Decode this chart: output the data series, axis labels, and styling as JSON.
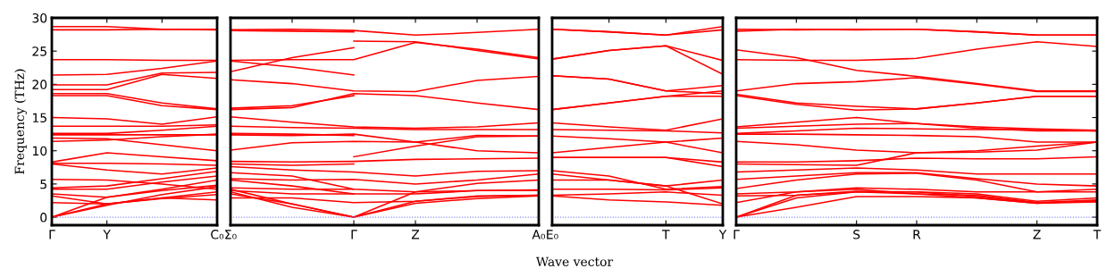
{
  "chart_data": [
    {
      "type": "line",
      "ylabel": "Frequency (THz)",
      "categories": [
        "Γ",
        "Y",
        null,
        "C₀"
      ],
      "ylim": [
        -1.2,
        30
      ],
      "yticks": [
        0,
        5,
        10,
        15,
        20,
        25,
        30
      ],
      "line_style": "solid",
      "marker": "none",
      "ref_lines": [
        {
          "axis": "y",
          "value": 0,
          "color": "#8080ff",
          "line_style": "dotted"
        }
      ],
      "series": [
        {
          "color": "#ff0000",
          "values": [
            28.7,
            28.7,
            28.3,
            28.3
          ]
        },
        {
          "color": "#ff0000",
          "values": [
            28.2,
            28.2,
            28.3,
            28.2
          ]
        },
        {
          "color": "#ff0000",
          "values": [
            23.7,
            23.7,
            23.6,
            23.6
          ]
        },
        {
          "color": "#ff0000",
          "values": [
            21.4,
            21.5,
            22.4,
            23.5
          ]
        },
        {
          "color": "#ff0000",
          "values": [
            19.9,
            19.9,
            21.7,
            21.8
          ]
        },
        {
          "color": "#ff0000",
          "values": [
            19.2,
            19.2,
            21.5,
            20.9
          ]
        },
        {
          "color": "#ff0000",
          "values": [
            18.6,
            18.6,
            17.2,
            16.3
          ]
        },
        {
          "color": "#ff0000",
          "values": [
            18.3,
            18.3,
            16.8,
            16.2
          ]
        },
        {
          "color": "#ff0000",
          "values": [
            15.0,
            14.8,
            14.0,
            15.1
          ]
        },
        {
          "color": "#ff0000",
          "values": [
            13.7,
            13.7,
            13.7,
            13.9
          ]
        },
        {
          "color": "#ff0000",
          "values": [
            12.6,
            12.6,
            13.1,
            13.7
          ]
        },
        {
          "color": "#ff0000",
          "values": [
            12.4,
            12.4,
            12.4,
            12.4
          ]
        },
        {
          "color": "#ff0000",
          "values": [
            11.9,
            11.8,
            10.9,
            10.0
          ]
        },
        {
          "color": "#ff0000",
          "values": [
            11.4,
            11.6,
            12.1,
            12.5
          ]
        },
        {
          "color": "#ff0000",
          "values": [
            8.3,
            9.7,
            9.1,
            8.5
          ]
        },
        {
          "color": "#ff0000",
          "values": [
            8.1,
            8.1,
            8.0,
            7.8
          ]
        },
        {
          "color": "#ff0000",
          "values": [
            8.0,
            7.1,
            6.5,
            7.4
          ]
        },
        {
          "color": "#ff0000",
          "values": [
            5.7,
            5.6,
            5.0,
            4.2
          ]
        },
        {
          "color": "#ff0000",
          "values": [
            4.4,
            4.7,
            5.8,
            6.9
          ]
        },
        {
          "color": "#ff0000",
          "values": [
            4.2,
            4.2,
            5.3,
            6.2
          ]
        },
        {
          "color": "#ff0000",
          "values": [
            3.5,
            3.0,
            4.2,
            5.6
          ]
        },
        {
          "color": "#ff0000",
          "values": [
            3.2,
            2.0,
            2.8,
            3.4
          ]
        },
        {
          "color": "#ff0000",
          "values": [
            2.2,
            2.0,
            2.9,
            2.6
          ]
        },
        {
          "color": "#ff0000",
          "values": [
            0,
            2.0,
            2.9,
            3.8
          ]
        },
        {
          "color": "#ff0000",
          "values": [
            0,
            3.0,
            4.0,
            4.8
          ]
        },
        {
          "color": "#ff0000",
          "values": [
            0,
            1.8,
            3.4,
            4.6
          ]
        }
      ]
    },
    {
      "type": "line",
      "xlabel": "Wave vector",
      "categories": [
        "Σ₀",
        null,
        "Γ",
        "Z",
        null,
        "A₀"
      ],
      "ylim": [
        -1.2,
        30
      ],
      "tick_labels": "x",
      "line_style": "solid",
      "marker": "none",
      "ref_lines": [
        {
          "axis": "y",
          "value": 0,
          "color": "#8080ff",
          "line_style": "dotted"
        }
      ],
      "series": [
        {
          "color": "#ff0000",
          "values": [
            28.2,
            28.3,
            28.1,
            27.4,
            27.8,
            28.3
          ]
        },
        {
          "color": "#ff0000",
          "values": [
            28.1,
            28.0,
            27.9,
            null,
            null,
            null
          ]
        },
        {
          "color": "#ff0000",
          "values": [
            23.6,
            23.7,
            23.7,
            26.3,
            25.3,
            24.0
          ]
        },
        {
          "color": "#ff0000",
          "values": [
            23.5,
            22.6,
            21.4,
            null,
            null,
            null
          ]
        },
        {
          "color": "#ff0000",
          "values": [
            21.9,
            24.0,
            25.5,
            null,
            null,
            null
          ]
        },
        {
          "color": "#ff0000",
          "values": [
            null,
            null,
            26.5,
            26.4,
            25.1,
            23.8
          ]
        },
        {
          "color": "#ff0000",
          "values": [
            20.7,
            20.1,
            19.0,
            18.9,
            20.6,
            21.2
          ]
        },
        {
          "color": "#ff0000",
          "values": [
            16.2,
            16.5,
            18.6,
            18.3,
            17.2,
            16.2
          ]
        },
        {
          "color": "#ff0000",
          "values": [
            16.4,
            16.8,
            18.3,
            null,
            null,
            null
          ]
        },
        {
          "color": "#ff0000",
          "values": [
            15.1,
            14.3,
            13.6,
            13.4,
            13.6,
            14.2
          ]
        },
        {
          "color": "#ff0000",
          "values": [
            13.7,
            13.5,
            13.4,
            13.2,
            13.2,
            13.2
          ]
        },
        {
          "color": "#ff0000",
          "values": [
            12.4,
            12.3,
            12.5,
            11.3,
            12.3,
            12.2
          ]
        },
        {
          "color": "#ff0000",
          "values": [
            12.6,
            12.5,
            12.3,
            null,
            null,
            null
          ]
        },
        {
          "color": "#ff0000",
          "values": [
            10.1,
            11.2,
            11.4,
            11.3,
            10.0,
            9.7
          ]
        },
        {
          "color": "#ff0000",
          "values": [
            null,
            null,
            9.1,
            10.7,
            12.1,
            12.2
          ]
        },
        {
          "color": "#ff0000",
          "values": [
            8.4,
            8.3,
            8.4,
            8.7,
            8.8,
            8.9
          ]
        },
        {
          "color": "#ff0000",
          "values": [
            8.0,
            7.8,
            8.0,
            null,
            null,
            null
          ]
        },
        {
          "color": "#ff0000",
          "values": [
            7.6,
            7.1,
            6.8,
            6.2,
            6.9,
            7.0
          ]
        },
        {
          "color": "#ff0000",
          "values": [
            5.8,
            5.6,
            5.7,
            5.0,
            5.6,
            6.5
          ]
        },
        {
          "color": "#ff0000",
          "values": [
            6.7,
            6.2,
            4.2,
            3.8,
            5.1,
            5.6
          ]
        },
        {
          "color": "#ff0000",
          "values": [
            4.4,
            4.2,
            4.2,
            null,
            null,
            null
          ]
        },
        {
          "color": "#ff0000",
          "values": [
            5.6,
            4.7,
            3.5,
            3.5,
            4.0,
            4.1
          ]
        },
        {
          "color": "#ff0000",
          "values": [
            4.0,
            3.5,
            3.5,
            null,
            null,
            null
          ]
        },
        {
          "color": "#ff0000",
          "values": [
            2.9,
            2.9,
            2.2,
            2.4,
            3.2,
            3.3
          ]
        },
        {
          "color": "#ff0000",
          "values": [
            3.5,
            2.0,
            0,
            2.4,
            3.1,
            3.3
          ]
        },
        {
          "color": "#ff0000",
          "values": [
            4.2,
            2.0,
            0,
            2.1,
            2.8,
            3.2
          ]
        },
        {
          "color": "#ff0000",
          "values": [
            3.8,
            1.5,
            0,
            3.8,
            4.0,
            4.0
          ]
        }
      ]
    },
    {
      "type": "line",
      "categories": [
        "E₀",
        null,
        "T",
        "Y"
      ],
      "ylim": [
        -1.2,
        30
      ],
      "tick_labels": "x",
      "line_style": "solid",
      "marker": "none",
      "ref_lines": [
        {
          "axis": "y",
          "value": 0,
          "color": "#8080ff",
          "line_style": "dotted"
        }
      ],
      "series": [
        {
          "color": "#ff0000",
          "values": [
            28.3,
            27.9,
            27.4,
            28.7
          ]
        },
        {
          "color": "#ff0000",
          "values": [
            28.3,
            27.9,
            27.4,
            28.2
          ]
        },
        {
          "color": "#ff0000",
          "values": [
            23.8,
            25.1,
            25.8,
            23.6
          ]
        },
        {
          "color": "#ff0000",
          "values": [
            23.8,
            25.1,
            25.8,
            21.5
          ]
        },
        {
          "color": "#ff0000",
          "values": [
            21.3,
            20.8,
            19.0,
            19.8
          ]
        },
        {
          "color": "#ff0000",
          "values": [
            21.3,
            20.8,
            19.0,
            18.6
          ]
        },
        {
          "color": "#ff0000",
          "values": [
            16.2,
            17.2,
            18.2,
            19.0
          ]
        },
        {
          "color": "#ff0000",
          "values": [
            16.2,
            17.2,
            18.2,
            18.2
          ]
        },
        {
          "color": "#ff0000",
          "values": [
            14.2,
            13.6,
            13.1,
            14.8
          ]
        },
        {
          "color": "#ff0000",
          "values": [
            13.2,
            13.1,
            13.0,
            12.7
          ]
        },
        {
          "color": "#ff0000",
          "values": [
            12.2,
            11.8,
            11.3,
            9.7
          ]
        },
        {
          "color": "#ff0000",
          "values": [
            9.7,
            10.5,
            11.3,
            11.9
          ]
        },
        {
          "color": "#ff0000",
          "values": [
            9.0,
            9.0,
            9.0,
            7.6
          ]
        },
        {
          "color": "#ff0000",
          "values": [
            9.0,
            9.0,
            9.0,
            8.3
          ]
        },
        {
          "color": "#ff0000",
          "values": [
            7.0,
            6.2,
            4.2,
            4.6
          ]
        },
        {
          "color": "#ff0000",
          "values": [
            6.5,
            5.6,
            4.7,
            2.0
          ]
        },
        {
          "color": "#ff0000",
          "values": [
            5.6,
            5.6,
            4.7,
            5.6
          ]
        },
        {
          "color": "#ff0000",
          "values": [
            4.2,
            4.2,
            4.1,
            4.4
          ]
        },
        {
          "color": "#ff0000",
          "values": [
            3.3,
            3.5,
            3.8,
            3.3
          ]
        },
        {
          "color": "#ff0000",
          "values": [
            3.2,
            2.6,
            2.3,
            1.8
          ]
        }
      ]
    },
    {
      "type": "line",
      "categories": [
        "Γ",
        null,
        "S",
        "R",
        null,
        "Z",
        "T"
      ],
      "ylim": [
        -1.2,
        30
      ],
      "tick_labels": "x",
      "line_style": "solid",
      "marker": "none",
      "ref_lines": [
        {
          "axis": "y",
          "value": 0,
          "color": "#8080ff",
          "line_style": "dotted"
        }
      ],
      "series": [
        {
          "color": "#ff0000",
          "values": [
            28.3,
            28.2,
            28.3,
            28.3,
            27.9,
            27.4,
            27.4
          ]
        },
        {
          "color": "#ff0000",
          "values": [
            28.0,
            28.3,
            28.2,
            28.3,
            27.9,
            27.4,
            27.4
          ]
        },
        {
          "color": "#ff0000",
          "values": [
            25.2,
            24.0,
            22.1,
            21.2,
            20.1,
            19.0,
            19.0
          ]
        },
        {
          "color": "#ff0000",
          "values": [
            23.7,
            23.6,
            23.6,
            23.9,
            25.3,
            26.4,
            25.7
          ]
        },
        {
          "color": "#ff0000",
          "values": [
            19.0,
            20.1,
            20.4,
            21.0,
            20.0,
            18.9,
            18.9
          ]
        },
        {
          "color": "#ff0000",
          "values": [
            18.5,
            17.2,
            16.7,
            16.3,
            17.2,
            18.2,
            18.2
          ]
        },
        {
          "color": "#ff0000",
          "values": [
            18.3,
            17.0,
            16.1,
            16.3,
            17.2,
            18.2,
            18.2
          ]
        },
        {
          "color": "#ff0000",
          "values": [
            13.6,
            14.3,
            15.0,
            14.1,
            13.4,
            13.0,
            13.0
          ]
        },
        {
          "color": "#ff0000",
          "values": [
            13.4,
            13.7,
            14.0,
            14.1,
            13.6,
            13.3,
            13.1
          ]
        },
        {
          "color": "#ff0000",
          "values": [
            12.6,
            13.0,
            13.4,
            13.3,
            13.2,
            13.2,
            13.0
          ]
        },
        {
          "color": "#ff0000",
          "values": [
            12.5,
            12.5,
            12.4,
            12.3,
            12.1,
            11.3,
            11.3
          ]
        },
        {
          "color": "#ff0000",
          "values": [
            11.4,
            10.9,
            10.1,
            9.7,
            10.0,
            10.7,
            11.3
          ]
        },
        {
          "color": "#ff0000",
          "values": [
            8.3,
            8.3,
            8.5,
            8.9,
            8.8,
            8.8,
            9.1
          ]
        },
        {
          "color": "#ff0000",
          "values": [
            8.0,
            7.9,
            7.8,
            9.7,
            9.8,
            10.1,
            11.3
          ]
        },
        {
          "color": "#ff0000",
          "values": [
            6.8,
            7.1,
            7.4,
            7.1,
            6.5,
            6.5,
            6.5
          ]
        },
        {
          "color": "#ff0000",
          "values": [
            5.7,
            6.2,
            6.7,
            6.7,
            5.8,
            5.0,
            4.7
          ]
        },
        {
          "color": "#ff0000",
          "values": [
            4.3,
            5.6,
            6.5,
            6.6,
            5.6,
            3.8,
            4.2
          ]
        },
        {
          "color": "#ff0000",
          "values": [
            3.5,
            3.8,
            4.4,
            4.2,
            3.8,
            3.8,
            3.8
          ]
        },
        {
          "color": "#ff0000",
          "values": [
            3.2,
            3.3,
            3.8,
            3.8,
            3.1,
            2.2,
            2.6
          ]
        },
        {
          "color": "#ff0000",
          "values": [
            2.2,
            3.8,
            4.2,
            3.5,
            2.9,
            2.1,
            2.5
          ]
        },
        {
          "color": "#ff0000",
          "values": [
            0,
            2.9,
            3.8,
            3.5,
            3.3,
            2.2,
            2.4
          ]
        },
        {
          "color": "#ff0000",
          "values": [
            0,
            1.5,
            3.1,
            3.1,
            2.9,
            2.1,
            2.3
          ]
        },
        {
          "color": "#ff0000",
          "values": [
            0,
            3.3,
            3.9,
            3.8,
            3.5,
            2.4,
            2.9
          ]
        }
      ]
    }
  ]
}
